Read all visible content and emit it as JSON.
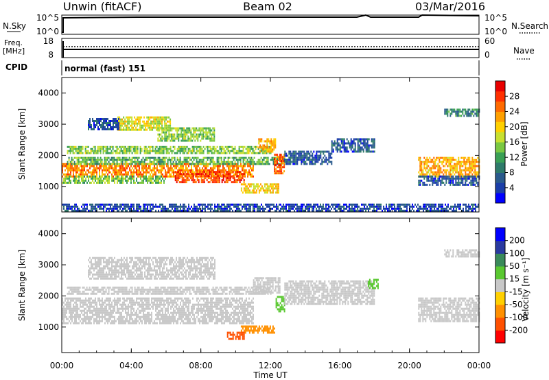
{
  "header": {
    "station": "Unwin (fitACF)",
    "beam": "Beam 02",
    "date": "03/Mar/2016"
  },
  "nsky_panel": {
    "label": "N.Sky",
    "right_label": "N.Search",
    "ticks_left": [
      "10^5",
      "10^0"
    ],
    "ticks_right": [
      "10^5",
      "10^0"
    ]
  },
  "freq_panel": {
    "label_top": "Freq.",
    "label_unit": "[MHz]",
    "ticks_left": [
      "18",
      "8"
    ],
    "ticks_right": [
      "60",
      "0"
    ],
    "right_label": "Nave"
  },
  "cpid_panel": {
    "label": "CPID",
    "mode": "normal (fast) 151"
  },
  "x_axis": {
    "ticks": [
      "00:00",
      "04:00",
      "08:00",
      "12:00",
      "16:00",
      "20:00",
      "00:00"
    ],
    "label": "Time UT"
  },
  "chart_data": [
    {
      "type": "heatmap",
      "ylabel": "Slant Range [km]",
      "yticks": [
        "4000",
        "3000",
        "2000",
        "1000"
      ],
      "ylim": [
        180,
        4500
      ],
      "xlim": [
        0,
        24
      ],
      "colorbar": {
        "label": "Power [dB]",
        "ticks": [
          "28",
          "24",
          "20",
          "16",
          "12",
          "8",
          "4"
        ],
        "range": [
          0,
          32
        ],
        "colors": [
          "#0000ff",
          "#1b3ea8",
          "#2a5a8c",
          "#2e7a6a",
          "#3aa055",
          "#7ac842",
          "#c8e030",
          "#ffd000",
          "#ffa000",
          "#ff6a00",
          "#ff3000",
          "#e80000"
        ]
      },
      "regions": [
        {
          "x": [
            0.0,
            11.0
          ],
          "y": [
            1300,
            1750
          ],
          "value": 24
        },
        {
          "x": [
            6.5,
            10.5
          ],
          "y": [
            1150,
            1500
          ],
          "value": 27
        },
        {
          "x": [
            0.0,
            6.0
          ],
          "y": [
            1150,
            1350
          ],
          "value": 14
        },
        {
          "x": [
            0.3,
            12.8
          ],
          "y": [
            1750,
            1950
          ],
          "value": 13
        },
        {
          "x": [
            0.3,
            12.0
          ],
          "y": [
            2050,
            2300
          ],
          "value": 15
        },
        {
          "x": [
            11.3,
            12.3
          ],
          "y": [
            2150,
            2550
          ],
          "value": 22
        },
        {
          "x": [
            12.2,
            12.8
          ],
          "y": [
            1450,
            2050
          ],
          "value": 26
        },
        {
          "x": [
            10.3,
            12.5
          ],
          "y": [
            800,
            1100
          ],
          "value": 20
        },
        {
          "x": [
            12.8,
            15.5
          ],
          "y": [
            1700,
            2150
          ],
          "value": 6
        },
        {
          "x": [
            15.5,
            18.0
          ],
          "y": [
            2150,
            2550
          ],
          "value": 6
        },
        {
          "x": [
            3.2,
            6.2
          ],
          "y": [
            2850,
            3250
          ],
          "value": 18
        },
        {
          "x": [
            1.5,
            3.3
          ],
          "y": [
            2850,
            3200
          ],
          "value": 6
        },
        {
          "x": [
            5.5,
            8.8
          ],
          "y": [
            2500,
            2900
          ],
          "value": 15
        },
        {
          "x": [
            20.5,
            24.0
          ],
          "y": [
            1350,
            1950
          ],
          "value": 22
        },
        {
          "x": [
            20.5,
            24.0
          ],
          "y": [
            1050,
            1350
          ],
          "value": 6
        },
        {
          "x": [
            22.0,
            24.0
          ],
          "y": [
            3250,
            3500
          ],
          "value": 10
        },
        {
          "x": [
            0.0,
            24.0
          ],
          "y": [
            200,
            450
          ],
          "value": 5
        }
      ]
    },
    {
      "type": "heatmap",
      "ylabel": "Slant Range [km]",
      "yticks": [
        "4000",
        "3000",
        "2000",
        "1000"
      ],
      "ylim": [
        180,
        4500
      ],
      "xlim": [
        0,
        24
      ],
      "colorbar": {
        "label": "Velocity [m s⁻¹]",
        "ticks": [
          "200",
          "100",
          "50",
          "15",
          "-15",
          "-50",
          "-100",
          "-200"
        ],
        "levels": [
          -250,
          -200,
          -100,
          -50,
          -15,
          15,
          50,
          100,
          200,
          250
        ],
        "colors": [
          "#ff0000",
          "#ff5000",
          "#ff9000",
          "#ffd000",
          "#c8c8c8",
          "#5ac830",
          "#3a8a5a",
          "#2a3aa0",
          "#0000ff"
        ]
      },
      "regions": [
        {
          "x": [
            0.0,
            11.0
          ],
          "y": [
            1150,
            1950
          ],
          "value": 0
        },
        {
          "x": [
            0.3,
            12.0
          ],
          "y": [
            2050,
            2300
          ],
          "value": 0
        },
        {
          "x": [
            1.5,
            8.8
          ],
          "y": [
            2550,
            3250
          ],
          "value": 0
        },
        {
          "x": [
            11.0,
            12.5
          ],
          "y": [
            2100,
            2600
          ],
          "value": 0
        },
        {
          "x": [
            12.3,
            12.8
          ],
          "y": [
            1500,
            2000
          ],
          "value": 30
        },
        {
          "x": [
            10.3,
            12.2
          ],
          "y": [
            850,
            1050
          ],
          "value": -70
        },
        {
          "x": [
            9.5,
            10.5
          ],
          "y": [
            650,
            850
          ],
          "value": -150
        },
        {
          "x": [
            12.8,
            18.0
          ],
          "y": [
            1750,
            2500
          ],
          "value": 0
        },
        {
          "x": [
            17.6,
            18.2
          ],
          "y": [
            2250,
            2550
          ],
          "value": 30
        },
        {
          "x": [
            20.5,
            24.0
          ],
          "y": [
            1200,
            1950
          ],
          "value": 0
        },
        {
          "x": [
            22.0,
            24.0
          ],
          "y": [
            3250,
            3500
          ],
          "value": 0
        }
      ]
    }
  ]
}
